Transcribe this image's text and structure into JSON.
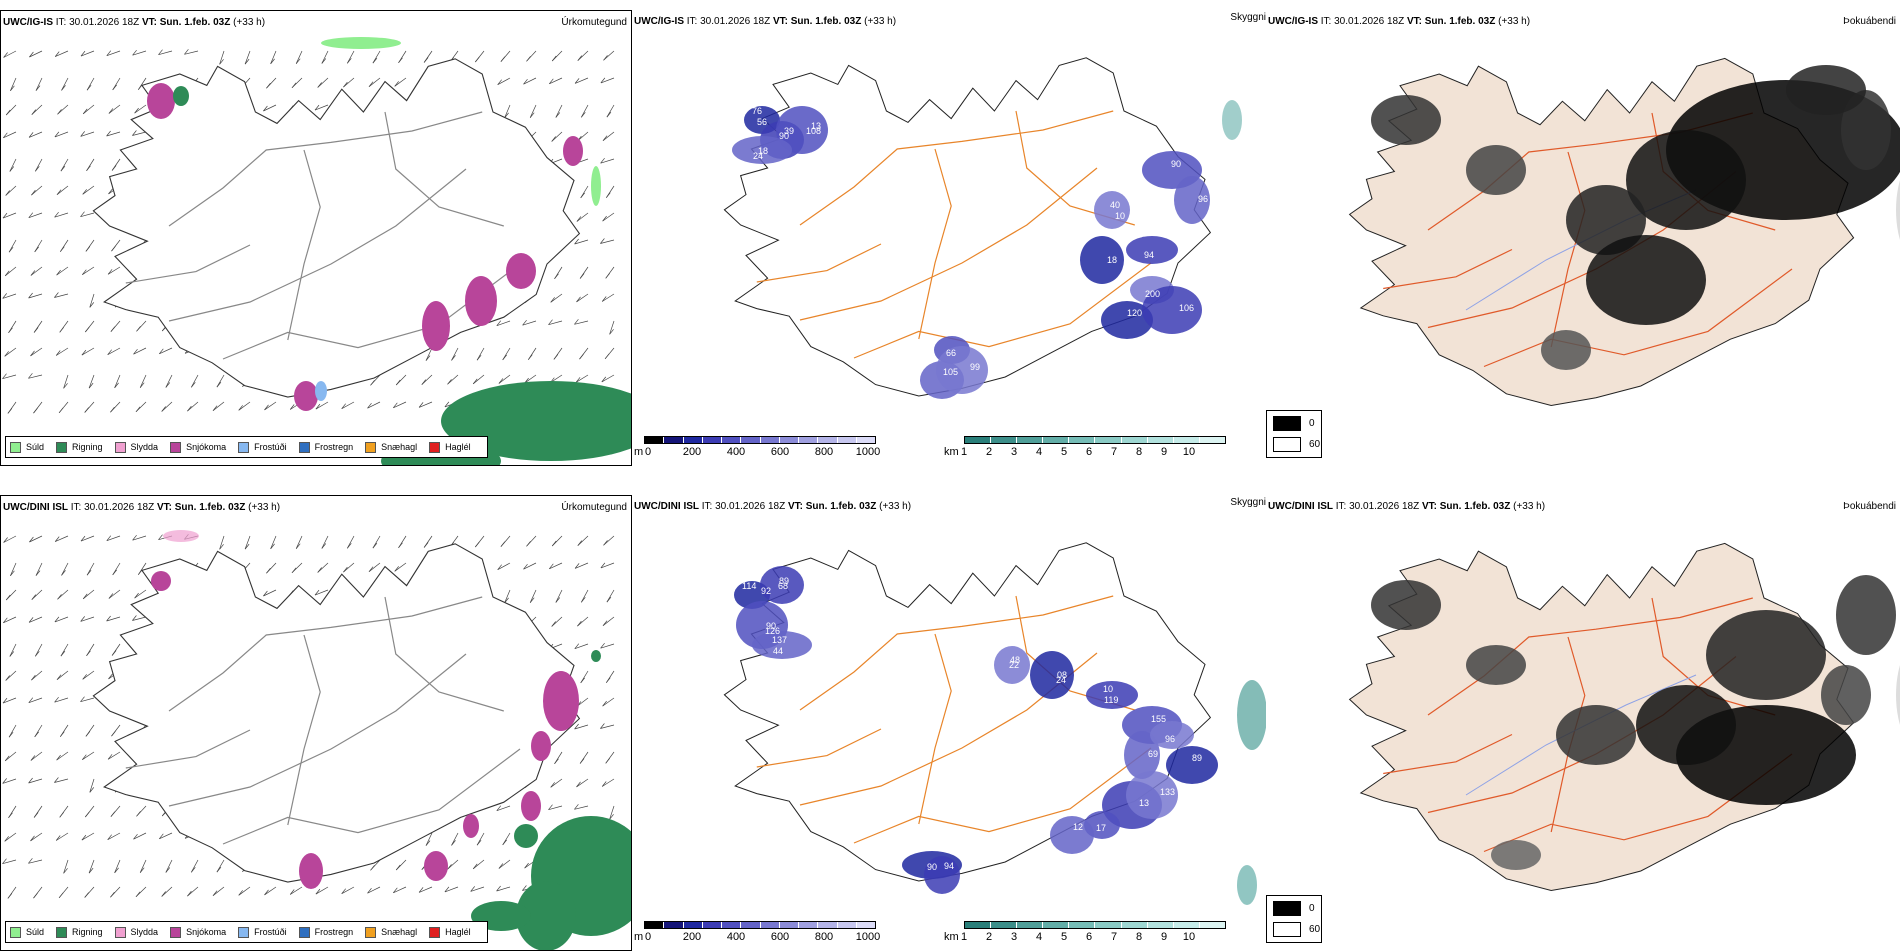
{
  "rows": [
    {
      "model": "UWC/IG-IS",
      "it_label": "IT:",
      "it_value": "30.01.2026 18Z",
      "vt_label": "VT:",
      "vt_value": "Sun. 1.feb. 03Z",
      "lead": "(+33 h)",
      "panel1_title": "Úrkomutegund",
      "panel2_title": "Skyggni",
      "panel3_title": "Þokuábendi",
      "visibility_labels": [
        "76",
        "90",
        "108",
        "24",
        "40",
        "18",
        "94",
        "90",
        "96",
        "200",
        "120",
        "106",
        "66",
        "105",
        "99",
        "56",
        "39",
        "13",
        "18",
        "10"
      ]
    },
    {
      "model": "UWC/DINI ISL",
      "it_label": "IT:",
      "it_value": "30.01.2026 18Z",
      "vt_label": "VT:",
      "vt_value": "Sun. 1.feb. 03Z",
      "lead": "(+33 h)",
      "panel1_title": "Úrkomutegund",
      "panel2_title": "Skyggni",
      "panel3_title": "Þokuábendi",
      "visibility_labels": [
        "114",
        "89",
        "90",
        "44",
        "48",
        "08",
        "119",
        "155",
        "69",
        "96",
        "89",
        "13",
        "17",
        "12",
        "133",
        "90",
        "94",
        "92",
        "68",
        "126",
        "137",
        "22",
        "24",
        "10"
      ]
    }
  ],
  "precip_legend": [
    {
      "label": "Súld",
      "color": "#90ee90"
    },
    {
      "label": "Rigning",
      "color": "#2e8b57"
    },
    {
      "label": "Slydda",
      "color": "#f0a0d0"
    },
    {
      "label": "Snjókoma",
      "color": "#b8459a"
    },
    {
      "label": "Frostúði",
      "color": "#87b8f0"
    },
    {
      "label": "Frostregn",
      "color": "#2f6fc0"
    },
    {
      "label": "Snæhagl",
      "color": "#f0a020"
    },
    {
      "label": "Haglél",
      "color": "#e02020"
    }
  ],
  "ceiling_bar": {
    "unit": "m",
    "ticks": [
      "0",
      "200",
      "400",
      "600",
      "800",
      "1000"
    ],
    "colors": [
      "#000000",
      "#141478",
      "#1e28a0",
      "#3c3cb4",
      "#5050c0",
      "#6464c8",
      "#7878d0",
      "#8c8cd8",
      "#a0a0e0",
      "#b4b4e8",
      "#c8c8f0",
      "#dcdcf8"
    ]
  },
  "visibility_bar": {
    "unit": "km",
    "ticks": [
      "1",
      "2",
      "3",
      "4",
      "5",
      "6",
      "7",
      "8",
      "9",
      "10"
    ],
    "colors": [
      "#2a7f7a",
      "#3d8f8a",
      "#509f99",
      "#63aea8",
      "#76bdb7",
      "#8acbc5",
      "#9ed7d2",
      "#b2e2de",
      "#c6ece9",
      "#dcf4f2"
    ]
  },
  "fog_legend": [
    {
      "label": "0",
      "color": "#000000"
    },
    {
      "label": "60",
      "color": "#ffffff"
    }
  ]
}
